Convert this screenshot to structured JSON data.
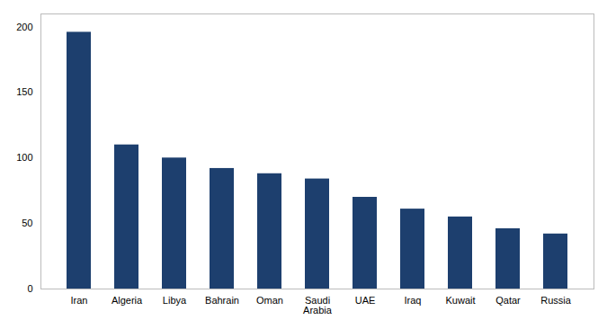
{
  "chart_data": {
    "type": "bar",
    "categories": [
      "Iran",
      "Algeria",
      "Libya",
      "Bahrain",
      "Oman",
      "Saudi\nArabia",
      "UAE",
      "Iraq",
      "Kuwait",
      "Qatar",
      "Russia"
    ],
    "values": [
      196,
      110,
      100,
      92,
      88,
      84,
      70,
      61,
      55,
      46,
      42
    ],
    "color": "#1d3f6e",
    "ylim": [
      0,
      210
    ],
    "yticks": [
      0,
      50,
      100,
      150,
      200
    ],
    "grid": false
  }
}
